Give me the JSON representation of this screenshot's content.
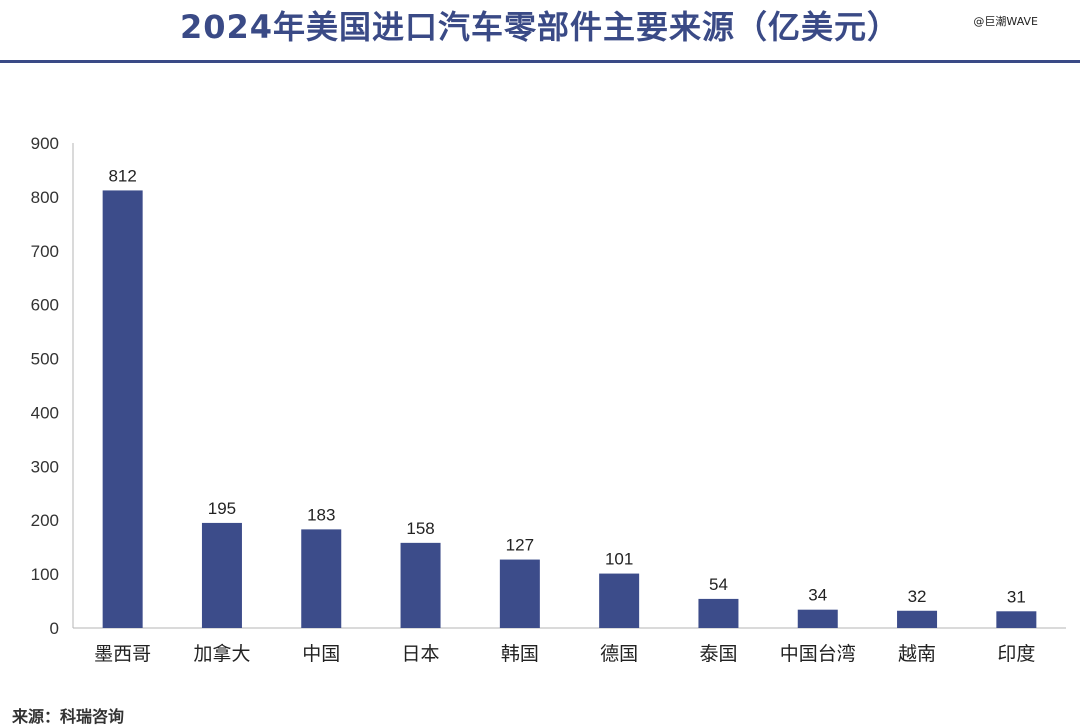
{
  "title": "2024年美国进口汽车零部件主要来源（亿美元）",
  "watermark": "@巨潮WAVE",
  "source": "来源：科瑞咨询",
  "chart_data": {
    "type": "bar",
    "title": "2024年美国进口汽车零部件主要来源（亿美元）",
    "categories": [
      "墨西哥",
      "加拿大",
      "中国",
      "日本",
      "韩国",
      "德国",
      "泰国",
      "中国台湾",
      "越南",
      "印度"
    ],
    "values": [
      812,
      195,
      183,
      158,
      127,
      101,
      54,
      34,
      32,
      31
    ],
    "ylim": [
      0,
      900
    ],
    "yticks": [
      0,
      100,
      200,
      300,
      400,
      500,
      600,
      700,
      800,
      900
    ],
    "xlabel": "",
    "ylabel": "",
    "grid": false,
    "legend": "none",
    "bar_color": "#3c4c8a",
    "accent_color": "#3a4a86"
  }
}
